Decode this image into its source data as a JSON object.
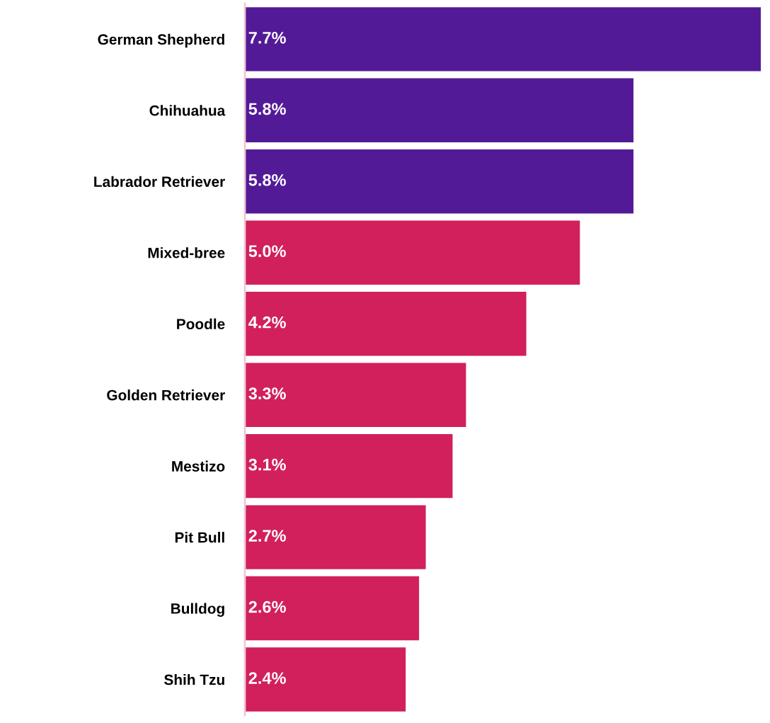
{
  "chart_data": {
    "type": "bar",
    "orientation": "horizontal",
    "categories": [
      "German Shepherd",
      "Chihuahua",
      "Labrador Retriever",
      "Mixed-bree",
      "Poodle",
      "Golden Retriever",
      "Mestizo",
      "Pit Bull",
      "Bulldog",
      "Shih Tzu"
    ],
    "values": [
      7.7,
      5.8,
      5.8,
      5.0,
      4.2,
      3.3,
      3.1,
      2.7,
      2.6,
      2.4
    ],
    "colors": [
      "#531a98",
      "#531a98",
      "#531a98",
      "#d1205c",
      "#d1205c",
      "#d1205c",
      "#d1205c",
      "#d1205c",
      "#d1205c",
      "#d1205c"
    ],
    "value_labels": [
      "7.7%",
      "5.8%",
      "5.8%",
      "5.0%",
      "4.2%",
      "3.3%",
      "3.1%",
      "2.7%",
      "2.6%",
      "2.4%"
    ],
    "xlim": [
      0,
      7.7
    ],
    "tick_labels": "y",
    "grid": false,
    "legend": false
  }
}
